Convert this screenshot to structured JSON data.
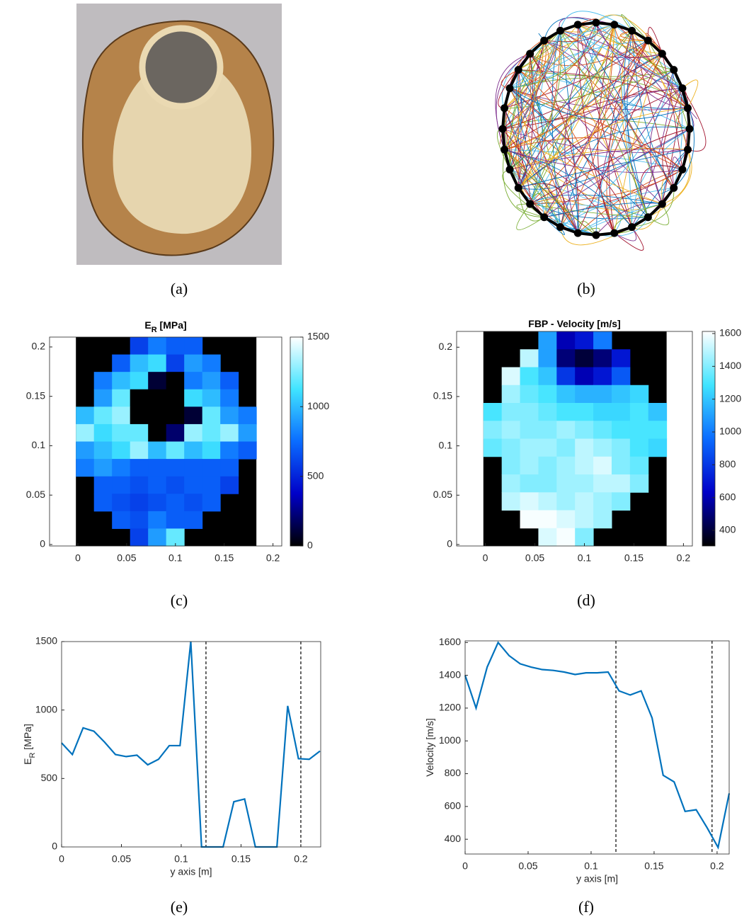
{
  "captions": [
    "(a)",
    "(b)",
    "(c)",
    "(d)",
    "(e)",
    "(f)"
  ],
  "chart_data": [
    {
      "type": "heatmap",
      "title_parts": [
        "E",
        "R",
        " [MPa]"
      ],
      "xlim": [
        -0.029,
        0.209
      ],
      "ylim": [
        -0.0015,
        0.21
      ],
      "xticks": [
        0,
        0.05,
        0.1,
        0.15,
        0.2
      ],
      "yticks": [
        0,
        0.05,
        0.1,
        0.15,
        0.2
      ],
      "x_extent": [
        -0.002,
        0.183
      ],
      "y_extent": [
        -0.0015,
        0.21
      ],
      "clim": [
        0,
        1500
      ],
      "cticks": [
        0,
        500,
        1000,
        1500
      ],
      "colorscale": [
        "#000000",
        "#0000c8",
        "#0a6cff",
        "#40e4ff",
        "#ffffff"
      ],
      "values": [
        [
          null,
          null,
          null,
          600,
          800,
          700,
          700,
          null,
          null,
          null
        ],
        [
          null,
          null,
          700,
          1000,
          1100,
          600,
          900,
          800,
          null,
          null
        ],
        [
          null,
          800,
          1000,
          1100,
          100,
          0,
          800,
          900,
          700,
          null
        ],
        [
          null,
          900,
          1200,
          0,
          0,
          0,
          1100,
          1000,
          800,
          null
        ],
        [
          1000,
          1200,
          1300,
          0,
          0,
          0,
          100,
          1200,
          900,
          800
        ],
        [
          1300,
          1100,
          1200,
          1200,
          0,
          200,
          1300,
          1200,
          1300,
          900
        ],
        [
          900,
          1000,
          1100,
          1300,
          1000,
          1200,
          1000,
          1100,
          800,
          700
        ],
        [
          800,
          900,
          800,
          700,
          700,
          700,
          700,
          700,
          700,
          null
        ],
        [
          null,
          700,
          700,
          650,
          700,
          650,
          700,
          700,
          600,
          null
        ],
        [
          null,
          700,
          650,
          600,
          650,
          700,
          650,
          700,
          null,
          null
        ],
        [
          null,
          null,
          700,
          650,
          800,
          700,
          700,
          null,
          null,
          null
        ],
        [
          null,
          null,
          null,
          600,
          900,
          1200,
          null,
          null,
          null,
          null
        ]
      ]
    },
    {
      "type": "heatmap",
      "title_parts": [
        "FBP - Velocity [m/s]"
      ],
      "xlim": [
        -0.029,
        0.209
      ],
      "ylim": [
        -0.0015,
        0.216
      ],
      "xticks": [
        0,
        0.05,
        0.1,
        0.15,
        0.2
      ],
      "yticks": [
        0,
        0.05,
        0.1,
        0.15,
        0.2
      ],
      "x_extent": [
        -0.002,
        0.183
      ],
      "y_extent": [
        -0.0015,
        0.216
      ],
      "clim": [
        305,
        1613
      ],
      "cticks": [
        400,
        600,
        800,
        1000,
        1200,
        1400,
        1600
      ],
      "colorscale": [
        "#000000",
        "#0000c8",
        "#0a6cff",
        "#40e4ff",
        "#ffffff"
      ],
      "values": [
        [
          null,
          null,
          null,
          1100,
          600,
          700,
          1000,
          null,
          null,
          null
        ],
        [
          null,
          null,
          1500,
          1100,
          500,
          400,
          500,
          700,
          null,
          null
        ],
        [
          null,
          1550,
          1300,
          1200,
          800,
          600,
          700,
          900,
          null,
          null
        ],
        [
          null,
          1450,
          1350,
          1300,
          1200,
          1150,
          1150,
          1200,
          1250,
          null
        ],
        [
          1300,
          1400,
          1400,
          1350,
          1300,
          1300,
          1250,
          1250,
          1300,
          1200
        ],
        [
          1400,
          1450,
          1400,
          1400,
          1450,
          1400,
          1350,
          1300,
          1300,
          1300
        ],
        [
          1350,
          1400,
          1450,
          1450,
          1400,
          1500,
          1450,
          1400,
          1300,
          1250
        ],
        [
          null,
          1400,
          1450,
          1400,
          1450,
          1500,
          1550,
          1400,
          1350,
          null
        ],
        [
          null,
          1450,
          1400,
          1400,
          1450,
          1450,
          1500,
          1500,
          1400,
          null
        ],
        [
          null,
          1500,
          1550,
          1500,
          1450,
          1500,
          1450,
          1400,
          null,
          null
        ],
        [
          null,
          null,
          1600,
          1600,
          1550,
          1500,
          1450,
          null,
          null,
          null
        ],
        [
          null,
          null,
          null,
          1550,
          1600,
          1400,
          null,
          null,
          null,
          null
        ]
      ]
    },
    {
      "type": "line",
      "xlabel": "y axis [m]",
      "ylabel_parts": [
        "E",
        "R",
        " [MPa]"
      ],
      "xlim": [
        0,
        0.2166
      ],
      "ylim": [
        0,
        1500
      ],
      "xticks": [
        0,
        0.05,
        0.1,
        0.15,
        0.2
      ],
      "yticks": [
        0,
        500,
        1000,
        1500
      ],
      "vlines": [
        0.1207,
        0.2
      ],
      "color": "#0072bd",
      "x": [
        0,
        0.009,
        0.018,
        0.027,
        0.036,
        0.045,
        0.054,
        0.063,
        0.072,
        0.081,
        0.09,
        0.099,
        0.108,
        0.117,
        0.126,
        0.135,
        0.144,
        0.153,
        0.162,
        0.171,
        0.18,
        0.189,
        0.198,
        0.207,
        0.216
      ],
      "values": [
        760,
        675,
        870,
        845,
        765,
        675,
        660,
        670,
        600,
        640,
        740,
        740,
        1500,
        0,
        0,
        0,
        330,
        350,
        0,
        0,
        0,
        1030,
        645,
        640,
        700
      ]
    },
    {
      "type": "line",
      "xlabel": "y axis [m]",
      "ylabel_parts": [
        "Velocity [m/s]"
      ],
      "xlim": [
        0,
        0.2096
      ],
      "ylim": [
        310,
        1610
      ],
      "xticks": [
        0,
        0.05,
        0.1,
        0.15,
        0.2
      ],
      "yticks": [
        400,
        600,
        800,
        1000,
        1200,
        1400,
        1600
      ],
      "vlines": [
        0.1197,
        0.196
      ],
      "color": "#0072bd",
      "x": [
        0,
        0.0087,
        0.0175,
        0.0262,
        0.0349,
        0.0437,
        0.0524,
        0.0611,
        0.0699,
        0.0786,
        0.0873,
        0.096,
        0.1048,
        0.1135,
        0.1222,
        0.131,
        0.1397,
        0.1484,
        0.1572,
        0.1659,
        0.1746,
        0.1834,
        0.1921,
        0.2008,
        0.2096
      ],
      "values": [
        1400,
        1200,
        1450,
        1600,
        1520,
        1470,
        1450,
        1435,
        1430,
        1420,
        1405,
        1415,
        1415,
        1420,
        1305,
        1280,
        1305,
        1140,
        790,
        750,
        570,
        580,
        470,
        350,
        680
      ]
    }
  ]
}
